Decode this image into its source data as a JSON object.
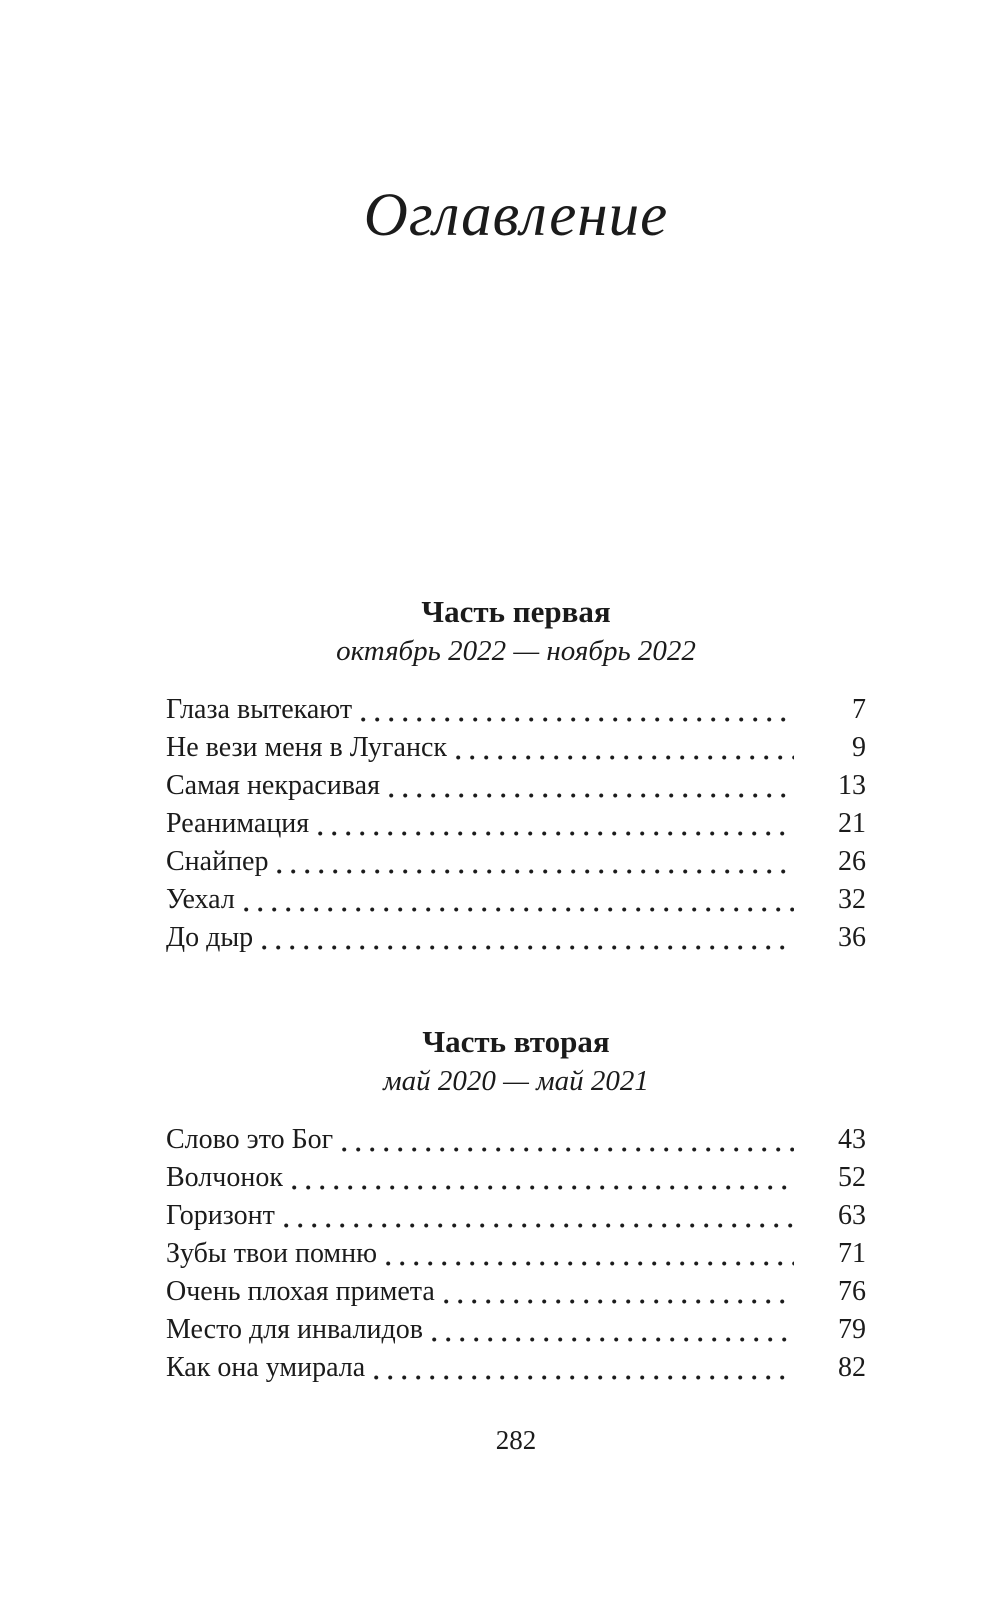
{
  "colors": {
    "text": "#1b1b1b",
    "background": "#ffffff"
  },
  "page": {
    "title": "Оглавление",
    "folio": "282"
  },
  "sections": [
    {
      "heading": "Часть первая",
      "subtitle": "октябрь 2022 — ноябрь 2022",
      "entries": [
        {
          "title": "Глаза вытекают",
          "page": "7"
        },
        {
          "title": "Не вези меня в Луганск",
          "page": "9"
        },
        {
          "title": "Самая некрасивая",
          "page": "13"
        },
        {
          "title": "Реанимация",
          "page": "21"
        },
        {
          "title": "Снайпер",
          "page": "26"
        },
        {
          "title": "Уехал",
          "page": "32"
        },
        {
          "title": "До дыр",
          "page": "36"
        }
      ]
    },
    {
      "heading": "Часть вторая",
      "subtitle": "май 2020 — май 2021",
      "entries": [
        {
          "title": "Слово это Бог",
          "page": "43"
        },
        {
          "title": "Волчонок",
          "page": "52"
        },
        {
          "title": "Горизонт",
          "page": "63"
        },
        {
          "title": "Зубы твои помню",
          "page": "71"
        },
        {
          "title": "Очень плохая примета",
          "page": "76"
        },
        {
          "title": "Место для инвалидов",
          "page": "79"
        },
        {
          "title": "Как она умирала",
          "page": "82"
        }
      ]
    }
  ]
}
